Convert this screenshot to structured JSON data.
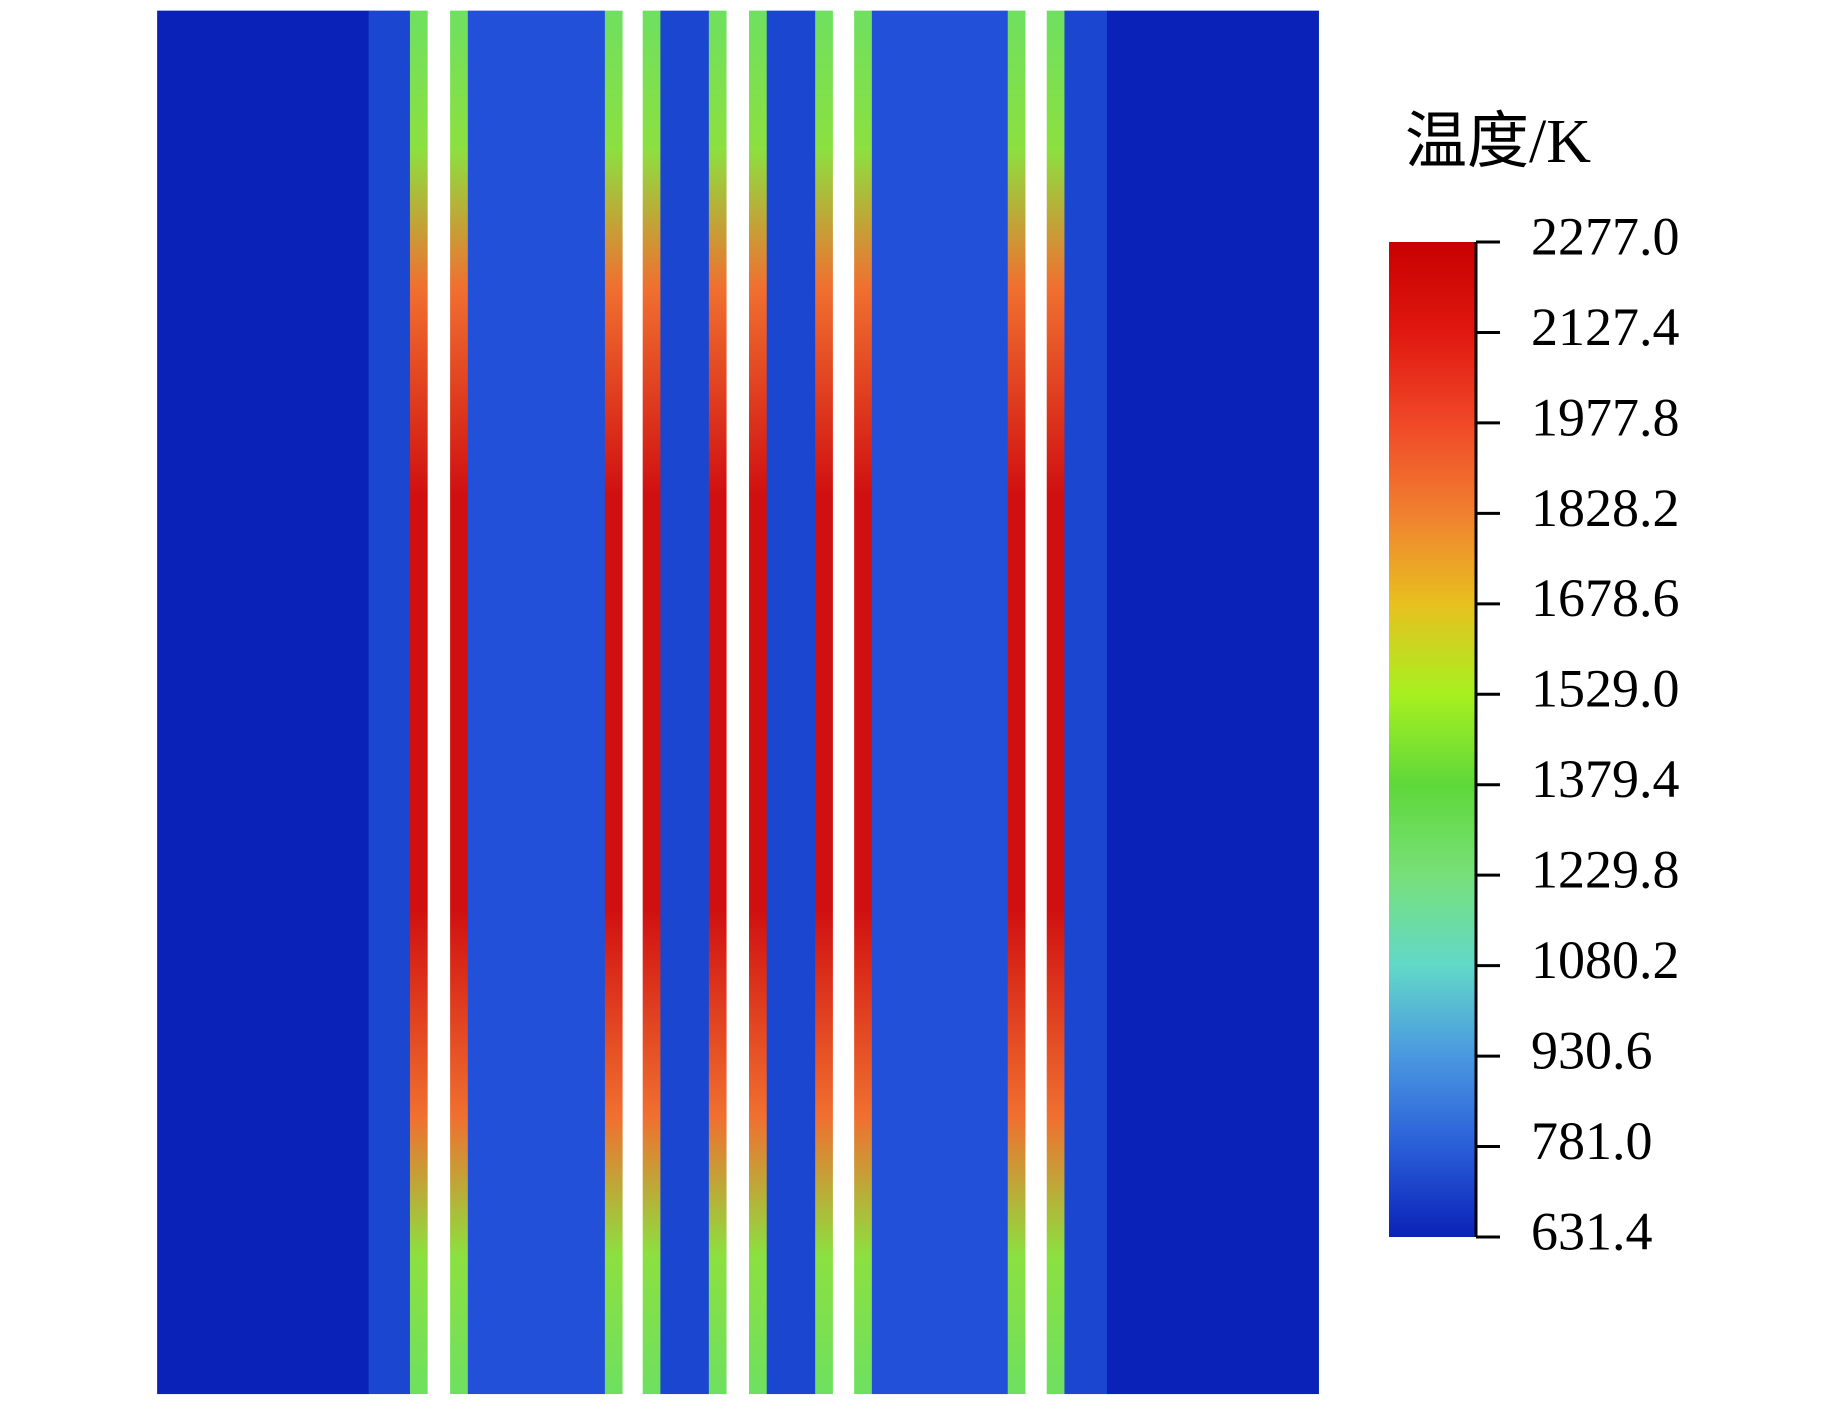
{
  "chart_data": {
    "type": "heatmap",
    "title": "温度/K",
    "ylim": [
      631.4,
      2277.0
    ],
    "yticks": [
      631.4,
      {
        "value": 781.0,
        "label": "781.0"
      },
      930.6,
      1080.2,
      1229.8,
      1379.4,
      {
        "value": 1529.0,
        "label": "1529.0"
      },
      1678.6,
      1828.2,
      1977.8,
      2127.4,
      {
        "value": 2277.0,
        "label": "2277.0"
      }
    ],
    "colormap": [
      "#0a22b8",
      "#2a5ed8",
      "#4a98e0",
      "#62d8c8",
      "#78e07a",
      "#5ed83a",
      "#a8f020",
      "#e8c020",
      "#f08030",
      "#f04828",
      "#e01810",
      "#c80000"
    ]
  }
}
